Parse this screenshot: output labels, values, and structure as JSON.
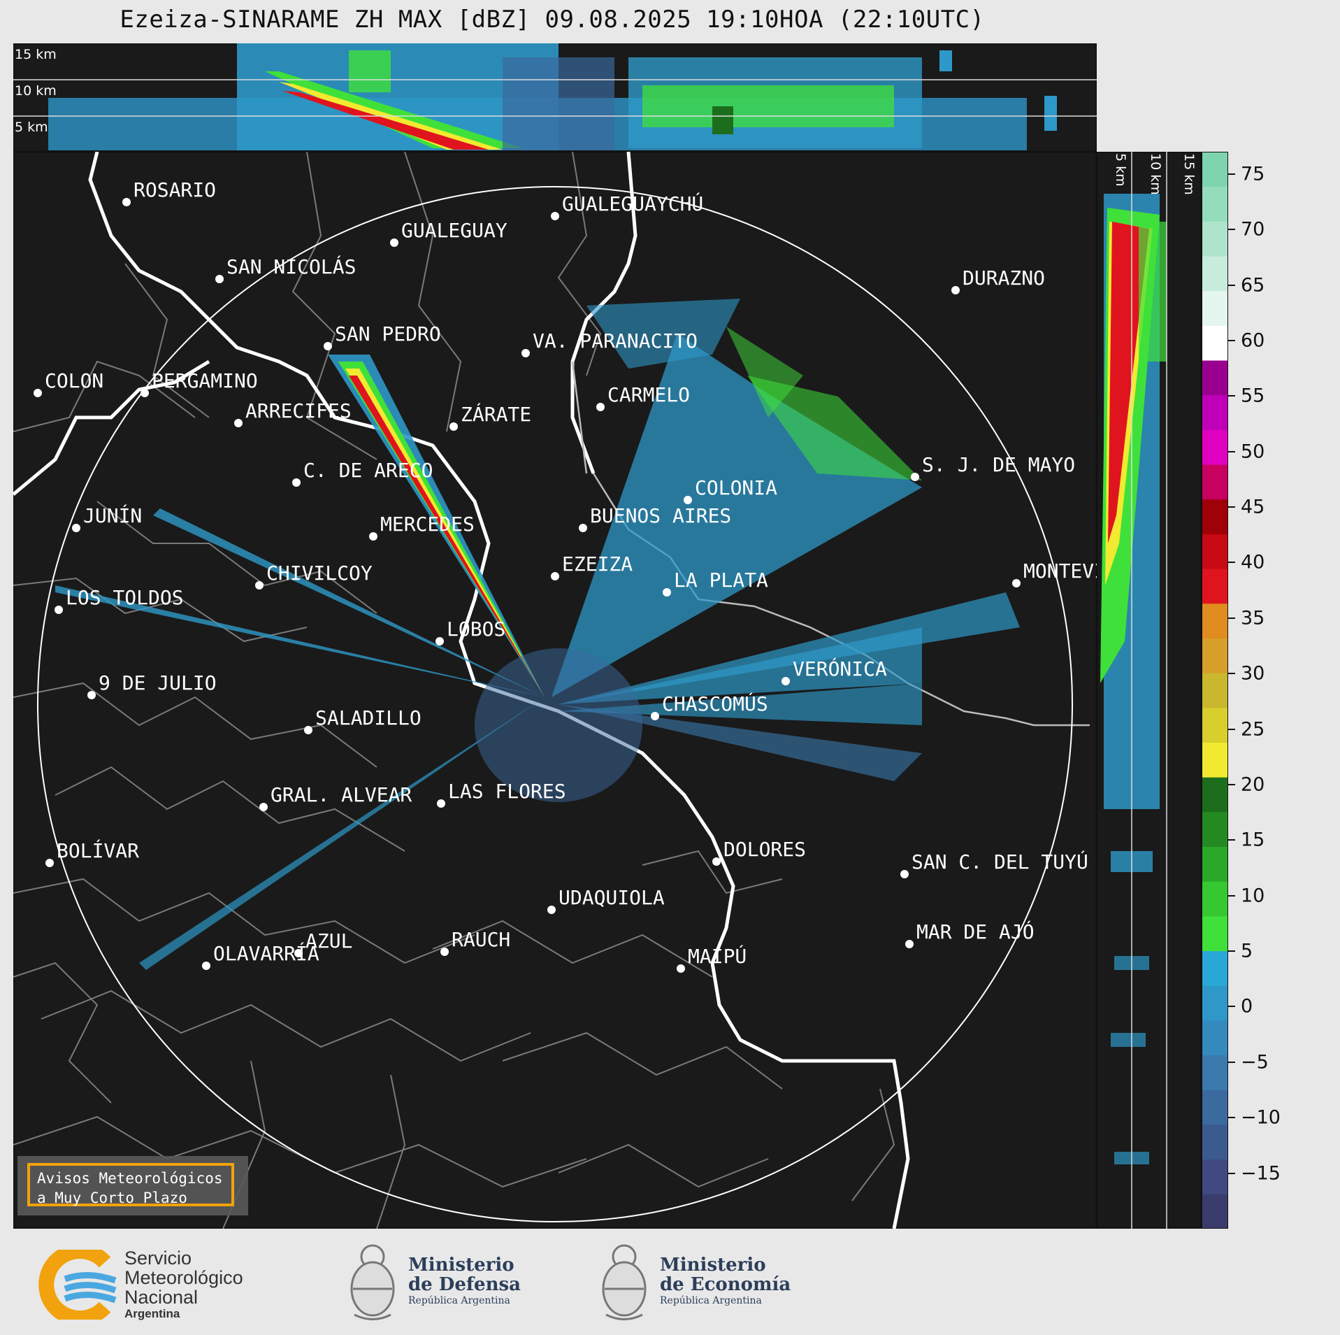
{
  "title": "Ezeiza-SINARAME ZH MAX [dBZ] 09.08.2025 19:10HOA (22:10UTC)",
  "top_section": {
    "height_labels": [
      "15 km",
      "10 km",
      "5 km"
    ]
  },
  "side_section": {
    "height_labels": [
      "5 km",
      "10 km",
      "15 km"
    ]
  },
  "colorbar": {
    "ticks": [
      "75",
      "70",
      "65",
      "60",
      "55",
      "50",
      "45",
      "40",
      "35",
      "30",
      "25",
      "20",
      "15",
      "10",
      "5",
      "0",
      "−5",
      "−10",
      "−15"
    ],
    "tick_values": [
      75,
      70,
      65,
      60,
      55,
      50,
      45,
      40,
      35,
      30,
      25,
      20,
      15,
      10,
      5,
      0,
      -5,
      -10,
      -15
    ],
    "range": [
      -20,
      77
    ],
    "colors_bottom_to_top": [
      "#3a3c6e",
      "#404a80",
      "#3b5a8f",
      "#3a6a9e",
      "#3a7aad",
      "#3489bd",
      "#2e98c8",
      "#29a7d6",
      "#3fe03a",
      "#35c830",
      "#2ba82a",
      "#238a22",
      "#1d6e1c",
      "#f2ea30",
      "#d8cf2c",
      "#c9b82e",
      "#d6a02a",
      "#e08c1e",
      "#e0141e",
      "#c80a14",
      "#a00008",
      "#c80060",
      "#e000c0",
      "#c000b8",
      "#9a0090",
      "#ffffff",
      "#e4f6ee",
      "#c8ecdc",
      "#aee4cc",
      "#94dcbc",
      "#7dd4ae"
    ]
  },
  "cities": [
    {
      "name": "ROSARIO"
    },
    {
      "name": "GUALEGUAYCHÚ"
    },
    {
      "name": "GUALEGUAY"
    },
    {
      "name": "SAN NICOLÁS"
    },
    {
      "name": "DURAZNO"
    },
    {
      "name": "SAN PEDRO"
    },
    {
      "name": "VA. PARANACITO"
    },
    {
      "name": "COLON"
    },
    {
      "name": "PERGAMINO"
    },
    {
      "name": "CARMELO"
    },
    {
      "name": "ARRECIFES"
    },
    {
      "name": "ZÁRATE"
    },
    {
      "name": "S. J. DE MAYO"
    },
    {
      "name": "C. DE ARECO"
    },
    {
      "name": "COLONIA"
    },
    {
      "name": "BUENOS AIRES"
    },
    {
      "name": "JUNÍN"
    },
    {
      "name": "MERCEDES"
    },
    {
      "name": "EZEIZA"
    },
    {
      "name": "MONTEVIDEO"
    },
    {
      "name": "CHIVILCOY"
    },
    {
      "name": "LA PLATA"
    },
    {
      "name": "LOS TOLDOS"
    },
    {
      "name": "LOBOS"
    },
    {
      "name": "VERÓNICA"
    },
    {
      "name": "9 DE JULIO"
    },
    {
      "name": "CHASCOMÚS"
    },
    {
      "name": "SALADILLO"
    },
    {
      "name": "GRAL. ALVEAR"
    },
    {
      "name": "LAS FLORES"
    },
    {
      "name": "BOLÍVAR"
    },
    {
      "name": "DOLORES"
    },
    {
      "name": "SAN C. DEL TUYÚ"
    },
    {
      "name": "UDAQUIOLA"
    },
    {
      "name": "MAR DE AJÓ"
    },
    {
      "name": "RAUCH"
    },
    {
      "name": "AZUL"
    },
    {
      "name": "MAIPÚ"
    },
    {
      "name": "OLAVARRÍA"
    }
  ],
  "badge": {
    "line1": "Avisos Meteorológicos",
    "line2": "a Muy Corto Plazo"
  },
  "footer": {
    "smn": {
      "line1": "Servicio",
      "line2": "Meteorológico",
      "line3": "Nacional",
      "line4": "Argentina"
    },
    "defensa": {
      "line1": "Ministerio",
      "line2": "de Defensa",
      "line3": "República Argentina"
    },
    "economia": {
      "line1": "Ministerio",
      "line2": "de Economía",
      "line3": "República Argentina"
    }
  }
}
